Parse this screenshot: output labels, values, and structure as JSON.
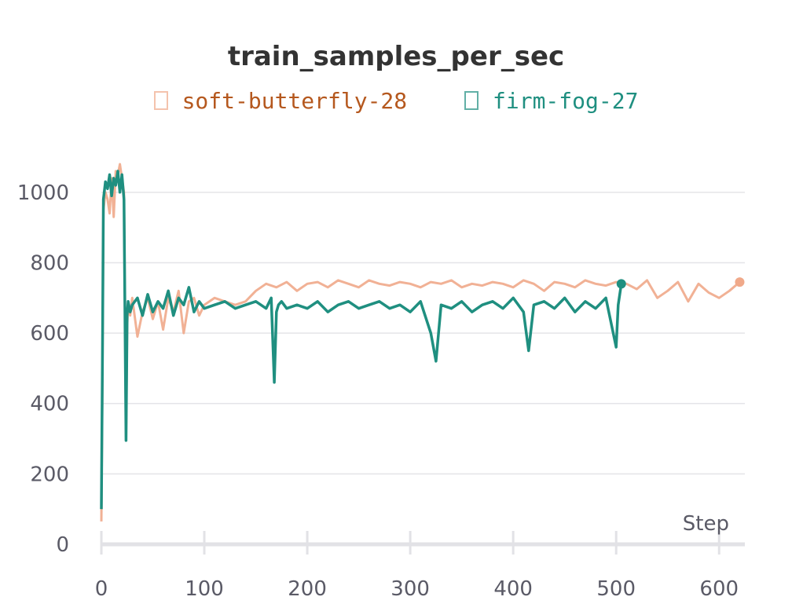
{
  "chart_data": {
    "type": "line",
    "title": "train_samples_per_sec",
    "xlabel": "Step",
    "ylabel": "",
    "xlim": [
      0,
      625
    ],
    "ylim": [
      0,
      1100
    ],
    "x_ticks": [
      "0",
      "100",
      "200",
      "300",
      "400",
      "500",
      "600"
    ],
    "y_ticks": [
      "0",
      "200",
      "400",
      "600",
      "800",
      "1000"
    ],
    "grid": true,
    "legend_position": "top-center",
    "series": [
      {
        "name": "soft-butterfly-28",
        "color": "#f0a98a",
        "label_color": "#b5581e",
        "x": [
          0,
          1,
          2,
          4,
          6,
          8,
          10,
          12,
          14,
          16,
          18,
          20,
          22,
          24,
          25,
          26,
          28,
          30,
          35,
          40,
          45,
          50,
          55,
          60,
          65,
          70,
          75,
          80,
          85,
          90,
          95,
          100,
          110,
          120,
          130,
          140,
          150,
          160,
          170,
          180,
          190,
          200,
          210,
          220,
          230,
          240,
          250,
          260,
          270,
          280,
          290,
          300,
          310,
          320,
          330,
          340,
          350,
          360,
          370,
          380,
          390,
          400,
          410,
          420,
          430,
          440,
          450,
          460,
          470,
          480,
          490,
          500,
          510,
          520,
          530,
          540,
          550,
          560,
          570,
          580,
          590,
          600,
          610,
          620
        ],
        "values": [
          65,
          450,
          950,
          1000,
          980,
          940,
          1040,
          930,
          1060,
          1050,
          1080,
          1040,
          1000,
          300,
          620,
          680,
          650,
          700,
          590,
          660,
          700,
          640,
          690,
          610,
          700,
          660,
          720,
          600,
          690,
          700,
          650,
          680,
          700,
          690,
          680,
          690,
          720,
          740,
          730,
          745,
          720,
          740,
          745,
          730,
          750,
          740,
          730,
          750,
          740,
          735,
          745,
          740,
          730,
          745,
          740,
          750,
          730,
          740,
          735,
          745,
          740,
          730,
          750,
          740,
          720,
          745,
          740,
          730,
          750,
          740,
          735,
          745,
          740,
          725,
          750,
          700,
          720,
          745,
          690,
          740,
          715,
          700,
          720,
          745
        ]
      },
      {
        "name": "firm-fog-27",
        "color": "#1f8f80",
        "label_color": "#1f8f80",
        "x": [
          0,
          1,
          2,
          4,
          6,
          8,
          10,
          12,
          14,
          16,
          18,
          20,
          22,
          24,
          25,
          26,
          28,
          30,
          35,
          40,
          45,
          50,
          55,
          60,
          65,
          70,
          75,
          80,
          85,
          90,
          95,
          100,
          110,
          120,
          130,
          140,
          150,
          160,
          165,
          168,
          170,
          172,
          175,
          180,
          190,
          200,
          210,
          220,
          230,
          240,
          250,
          260,
          270,
          280,
          290,
          300,
          310,
          320,
          325,
          330,
          340,
          350,
          360,
          370,
          380,
          390,
          400,
          410,
          415,
          420,
          430,
          440,
          450,
          460,
          470,
          480,
          490,
          500,
          502,
          505
        ],
        "values": [
          100,
          500,
          980,
          1030,
          1010,
          1050,
          990,
          1040,
          1020,
          1060,
          1000,
          1050,
          980,
          295,
          650,
          690,
          660,
          680,
          700,
          650,
          710,
          660,
          690,
          670,
          720,
          650,
          700,
          680,
          730,
          660,
          690,
          670,
          680,
          690,
          670,
          680,
          690,
          670,
          700,
          460,
          660,
          680,
          690,
          670,
          680,
          670,
          690,
          660,
          680,
          690,
          670,
          680,
          690,
          670,
          680,
          660,
          690,
          600,
          520,
          680,
          670,
          690,
          660,
          680,
          690,
          670,
          700,
          660,
          550,
          680,
          690,
          670,
          700,
          660,
          690,
          670,
          700,
          560,
          680,
          740
        ]
      }
    ]
  }
}
